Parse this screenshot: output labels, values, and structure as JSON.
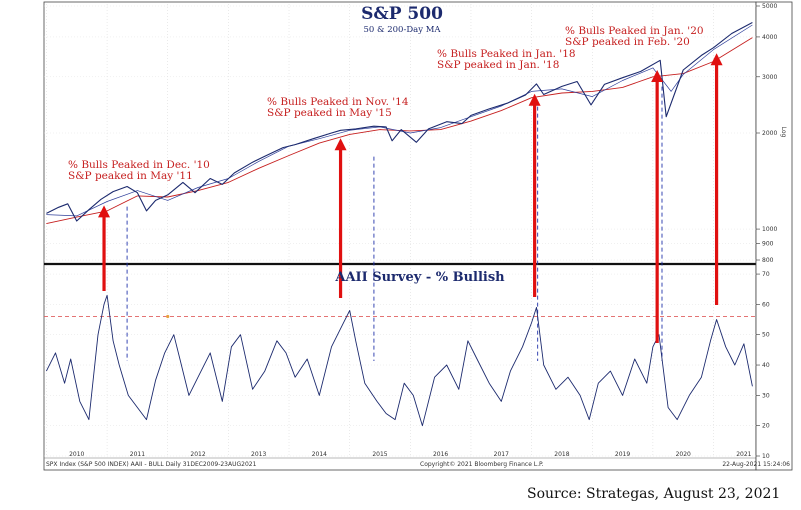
{
  "chart_data": {
    "type": "line",
    "title": "S&P 500",
    "subtitle": "50 & 200-Day MA",
    "panels": [
      {
        "name": "price",
        "yscale": "log",
        "ylim": [
          800,
          5000
        ],
        "right_ticks": [
          "5000",
          "4000",
          "3000",
          "2000",
          "1000",
          "900",
          "800"
        ],
        "right_tick_values": [
          5000,
          4000,
          3000,
          2000,
          1000,
          900,
          800
        ],
        "axis_label": "Log",
        "series": [
          {
            "key": "spx",
            "color": "#1c2a6e",
            "x": [
              2010.0,
              2010.2,
              2010.35,
              2010.5,
              2010.7,
              2010.9,
              2011.1,
              2011.33,
              2011.5,
              2011.65,
              2011.8,
              2012.0,
              2012.25,
              2012.45,
              2012.7,
              2012.9,
              2013.1,
              2013.4,
              2013.6,
              2013.9,
              2014.1,
              2014.4,
              2014.7,
              2014.85,
              2015.1,
              2015.4,
              2015.6,
              2015.7,
              2015.85,
              2016.1,
              2016.3,
              2016.6,
              2016.85,
              2017.0,
              2017.3,
              2017.6,
              2017.9,
              2018.08,
              2018.2,
              2018.5,
              2018.75,
              2018.98,
              2019.2,
              2019.5,
              2019.8,
              2020.12,
              2020.22,
              2020.5,
              2020.8,
              2021.0,
              2021.3,
              2021.64
            ],
            "y": [
              1120,
              1170,
              1200,
              1060,
              1150,
              1240,
              1310,
              1360,
              1300,
              1140,
              1230,
              1280,
              1400,
              1300,
              1440,
              1380,
              1500,
              1620,
              1690,
              1800,
              1840,
              1920,
              2000,
              2040,
              2060,
              2100,
              2090,
              1890,
              2050,
              1870,
              2060,
              2170,
              2140,
              2270,
              2380,
              2480,
              2630,
              2850,
              2640,
              2800,
              2900,
              2450,
              2840,
              2980,
              3120,
              3380,
              2250,
              3150,
              3500,
              3700,
              4100,
              4440
            ]
          },
          {
            "key": "ma50",
            "color": "#2f3f9a",
            "x": [
              2010.0,
              2010.5,
              2011.0,
              2011.5,
              2012.0,
              2012.5,
              2013.0,
              2013.5,
              2014.0,
              2014.5,
              2015.0,
              2015.5,
              2016.0,
              2016.5,
              2017.0,
              2017.5,
              2018.0,
              2018.5,
              2019.0,
              2019.5,
              2020.0,
              2020.3,
              2020.5,
              2021.0,
              2021.64
            ],
            "y": [
              1110,
              1100,
              1220,
              1320,
              1230,
              1350,
              1440,
              1630,
              1820,
              1920,
              2040,
              2090,
              2000,
              2080,
              2250,
              2430,
              2700,
              2750,
              2600,
              2920,
              3200,
              2700,
              3050,
              3650,
              4360
            ]
          },
          {
            "key": "ma200",
            "color": "#c62020",
            "x": [
              2010.0,
              2010.5,
              2011.0,
              2011.5,
              2012.0,
              2012.5,
              2013.0,
              2013.5,
              2014.0,
              2014.5,
              2015.0,
              2015.5,
              2016.0,
              2016.5,
              2017.0,
              2017.5,
              2018.0,
              2018.5,
              2019.0,
              2019.5,
              2020.0,
              2020.5,
              2021.0,
              2021.64
            ],
            "y": [
              1040,
              1090,
              1140,
              1270,
              1260,
              1320,
              1400,
              1550,
              1700,
              1860,
              1980,
              2050,
              2030,
              2050,
              2180,
              2350,
              2580,
              2670,
              2700,
              2780,
              3000,
              3070,
              3350,
              3980
            ]
          }
        ]
      },
      {
        "name": "AAII Survey - % Bullish",
        "ylim": [
          10,
          72
        ],
        "right_ticks": [
          "70",
          "60",
          "50",
          "40",
          "30",
          "20",
          "10"
        ],
        "right_tick_values": [
          70,
          60,
          50,
          40,
          30,
          20,
          10
        ],
        "threshold": 56,
        "series": [
          {
            "key": "bullish",
            "color": "#1c2a6e",
            "x": [
              2010.0,
              2010.15,
              2010.3,
              2010.4,
              2010.55,
              2010.7,
              2010.85,
              2010.95,
              2011.0,
              2011.1,
              2011.2,
              2011.35,
              2011.5,
              2011.65,
              2011.8,
              2011.95,
              2012.1,
              2012.2,
              2012.35,
              2012.5,
              2012.7,
              2012.9,
              2013.05,
              2013.2,
              2013.4,
              2013.6,
              2013.8,
              2013.95,
              2014.1,
              2014.3,
              2014.5,
              2014.7,
              2014.9,
              2015.0,
              2015.1,
              2015.25,
              2015.45,
              2015.6,
              2015.75,
              2015.9,
              2016.05,
              2016.2,
              2016.4,
              2016.6,
              2016.8,
              2016.95,
              2017.1,
              2017.3,
              2017.5,
              2017.65,
              2017.85,
              2018.0,
              2018.08,
              2018.2,
              2018.4,
              2018.6,
              2018.8,
              2018.95,
              2019.1,
              2019.3,
              2019.5,
              2019.7,
              2019.9,
              2020.0,
              2020.1,
              2020.25,
              2020.4,
              2020.6,
              2020.8,
              2020.95,
              2021.05,
              2021.2,
              2021.35,
              2021.5,
              2021.64
            ],
            "y": [
              38,
              44,
              34,
              42,
              28,
              22,
              50,
              60,
              63,
              48,
              40,
              30,
              26,
              22,
              35,
              44,
              50,
              42,
              30,
              36,
              44,
              28,
              46,
              50,
              32,
              38,
              48,
              44,
              36,
              42,
              30,
              46,
              54,
              58,
              48,
              34,
              28,
              24,
              22,
              34,
              30,
              20,
              36,
              40,
              32,
              48,
              42,
              34,
              28,
              38,
              46,
              54,
              59,
              40,
              32,
              36,
              30,
              22,
              34,
              38,
              30,
              42,
              34,
              46,
              50,
              26,
              22,
              30,
              36,
              48,
              55,
              46,
              40,
              47,
              33
            ]
          }
        ]
      }
    ],
    "x_ticks": [
      "2010",
      "2011",
      "2012",
      "2013",
      "2014",
      "2015",
      "2016",
      "2017",
      "2018",
      "2019",
      "2020",
      "2021"
    ],
    "x_tick_values": [
      2010,
      2011,
      2012,
      2013,
      2014,
      2015,
      2016,
      2017,
      2018,
      2019,
      2020,
      2021
    ],
    "xlim": [
      2009.96,
      2021.7
    ],
    "annotations": [
      {
        "line1": "% Bulls Peaked in Dec. '10",
        "line2": "S&P peaked in May '11",
        "bull_peak_x": 2010.95,
        "spx_peak_x": 2011.33
      },
      {
        "line1": "% Bulls Peaked in Nov. '14",
        "line2": "S&P peaked in May '15",
        "bull_peak_x": 2014.85,
        "spx_peak_x": 2015.4
      },
      {
        "line1": "% Bulls Peaked in Jan. '18",
        "line2": "S&P peaked in Jan. '18",
        "bull_peak_x": 2018.05,
        "spx_peak_x": 2018.1
      },
      {
        "line1": "% Bulls Peaked in Jan. '20",
        "line2": "S&P peaked in Feb. '20",
        "bull_peak_x": 2020.07,
        "spx_peak_x": 2020.15
      }
    ],
    "arrows_x": [
      2010.95,
      2014.85,
      2018.05,
      2020.07,
      2021.05
    ],
    "footer_left": "SPX Index (S&P 500 INDEX) AAII - BULL  Daily 31DEC2009-23AUG2021",
    "footer_center": "Copyright© 2021 Bloomberg Finance L.P.",
    "footer_right": "22-Aug-2021 15:24:06",
    "colors": {
      "price": "#1c2a6e",
      "ma200": "#c62020",
      "arrow": "#e01010",
      "threshold": "#e06060",
      "dashed": "#2233aa"
    }
  },
  "source": "Source:  Strategas, August 23, 2021"
}
